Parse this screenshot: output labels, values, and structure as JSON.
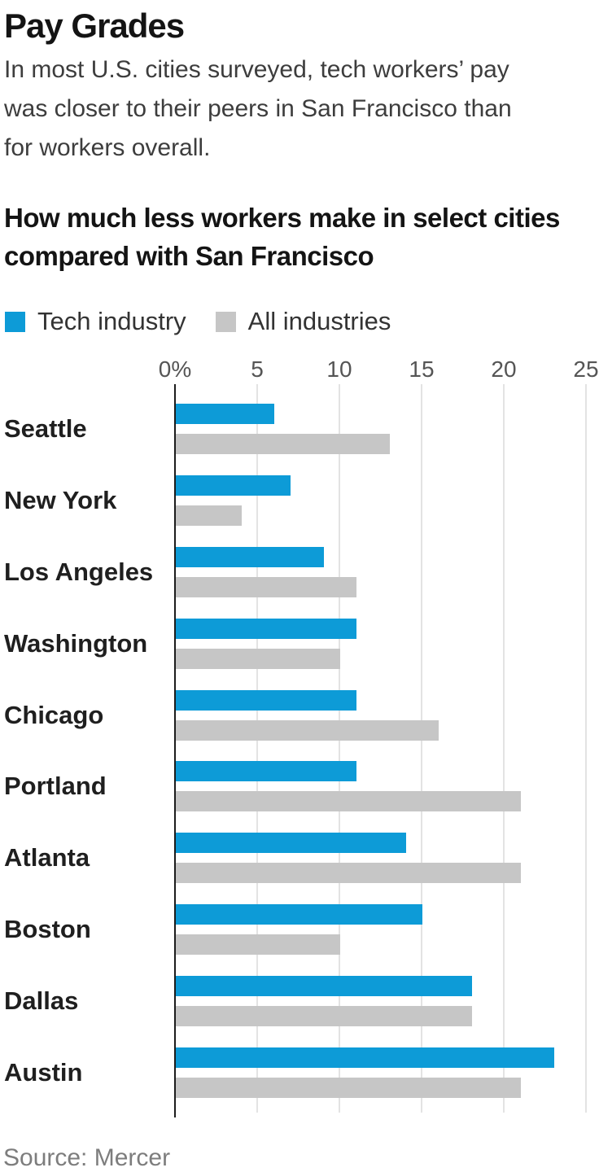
{
  "header": {
    "title": "Pay Grades",
    "subtitle_lines": [
      "In most U.S. cities surveyed, tech workers’ pay",
      "was closer to their peers in San Francisco than",
      "for workers overall."
    ]
  },
  "chart_data": {
    "type": "bar",
    "orientation": "horizontal",
    "title": "How much less workers make in select cities compared with San Francisco",
    "title_lines": [
      "How much less workers make in select cities",
      "compared with San Francisco"
    ],
    "categories": [
      "Seattle",
      "New York",
      "Los Angeles",
      "Washington",
      "Chicago",
      "Portland",
      "Atlanta",
      "Boston",
      "Dallas",
      "Austin"
    ],
    "series": [
      {
        "name": "Tech industry",
        "color": "#0d9bd7",
        "values": [
          6,
          7,
          9,
          11,
          11,
          11,
          14,
          15,
          18,
          23
        ]
      },
      {
        "name": "All industries",
        "color": "#c6c6c6",
        "values": [
          13,
          4,
          11,
          10,
          16,
          21,
          21,
          10,
          18,
          21
        ]
      }
    ],
    "x_axis": {
      "ticks": [
        "0%",
        "5",
        "10",
        "15",
        "20",
        "25"
      ],
      "tick_values": [
        0,
        5,
        10,
        15,
        20,
        25
      ],
      "min": 0,
      "max": 25,
      "unit": "percent"
    },
    "grid": true,
    "legend_position": "top"
  },
  "source": "Source: Mercer"
}
